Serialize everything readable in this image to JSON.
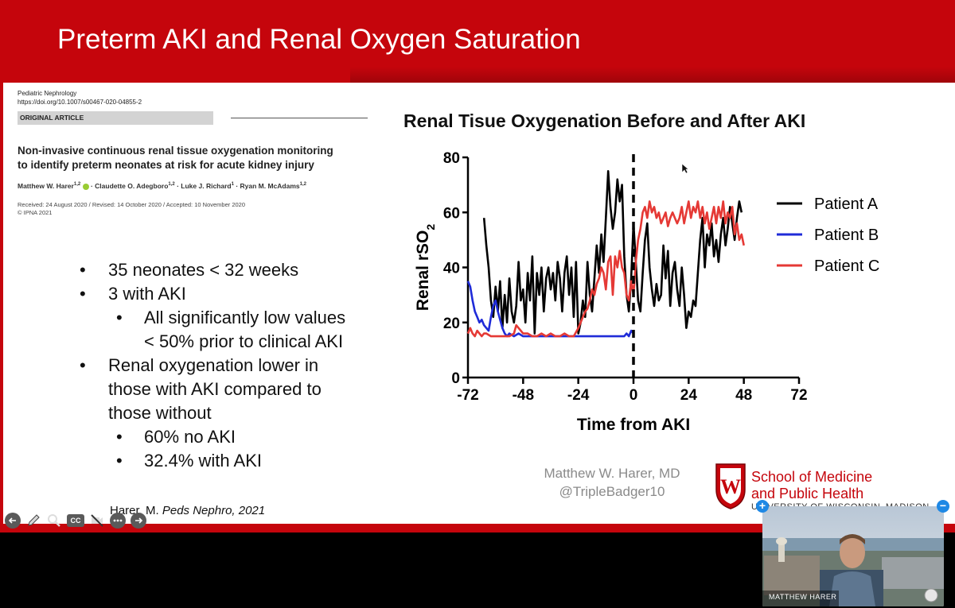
{
  "slide": {
    "title": "Preterm AKI and Renal Oxygen Saturation"
  },
  "paper": {
    "journal": "Pediatric Nephrology",
    "doi": "https://doi.org/10.1007/s00467-020-04855-2",
    "article_type": "ORIGINAL ARTICLE",
    "title_line1": "Non-invasive continuous renal tissue oxygenation monitoring",
    "title_line2": "to identify preterm neonates at risk for acute kidney injury",
    "author1": "Matthew W. Harer",
    "author1_sup": "1,2",
    "author2": "· Claudette O. Adegboro",
    "author2_sup": "1,2",
    "author3": "· Luke J. Richard",
    "author3_sup": "1",
    "author4": "· Ryan M. McAdams",
    "author4_sup": "1,2",
    "dates": "Received: 24 August 2020 / Revised: 14 October 2020 / Accepted: 10 November 2020",
    "copyright": "© IPNA 2021"
  },
  "bullets": {
    "b1": "35 neonates < 32 weeks",
    "b2": "3 with AKI",
    "b2a_line1": "All significantly low values",
    "b2a_line2": "< 50% prior to clinical AKI",
    "b3_line1": "Renal oxygenation lower in",
    "b3_line2": "those with AKI compared to",
    "b3_line3": "those without",
    "b3a": "60% no AKI",
    "b3b": "32.4% with AKI",
    "bullet_char": "•"
  },
  "citation": {
    "prefix": "Harer, M. ",
    "journal": "Peds Nephro, 2021"
  },
  "credit": {
    "name": "Matthew W. Harer, MD",
    "handle": "@TripleBadger10"
  },
  "school": {
    "line1": "School of Medicine",
    "line2": "and Public Health",
    "line3": "UNIVERSITY OF WISCONSIN–MADISON",
    "color": "#c5050c"
  },
  "webcam": {
    "participant": "MATTHEW HARER",
    "expand": "+",
    "collapse": "−"
  },
  "toolbar": {
    "icons": [
      "back-icon",
      "pen-icon",
      "zoom-icon",
      "captions-icon",
      "video-off-icon",
      "more-icon",
      "forward-icon"
    ],
    "cc_label": "CC"
  },
  "chart_data": {
    "type": "line",
    "title": "Renal Tisue Oxygenation Before and After AKI",
    "xlabel": "Time from AKI",
    "ylabel": "Renal rSO2",
    "xlim": [
      -72,
      72
    ],
    "ylim": [
      0,
      80
    ],
    "xticks": [
      "-72",
      "-48",
      "-24",
      "0",
      "24",
      "48",
      "72"
    ],
    "yticks": [
      "0",
      "20",
      "40",
      "60",
      "80"
    ],
    "vline_x": 0,
    "legend_position": "right",
    "series": [
      {
        "name": "Patient A",
        "color": "#000000",
        "x": [
          -65,
          -64,
          -63,
          -62,
          -61,
          -60,
          -59,
          -58,
          -57,
          -56,
          -55,
          -54,
          -53,
          -52,
          -51,
          -50,
          -49,
          -48,
          -47,
          -46,
          -45,
          -44,
          -43,
          -42,
          -41,
          -40,
          -39,
          -38,
          -37,
          -36,
          -35,
          -34,
          -33,
          -32,
          -31,
          -30,
          -29,
          -28,
          -27,
          -26,
          -25,
          -24,
          -23,
          -22,
          -21,
          -20,
          -19,
          -18,
          -17,
          -16,
          -15,
          -14,
          -13,
          -12,
          -11,
          -10,
          -9,
          -8,
          -7,
          -6,
          -5,
          -4,
          -3,
          -2,
          -1,
          0,
          1,
          2,
          3,
          4,
          5,
          6,
          7,
          8,
          9,
          10,
          11,
          12,
          13,
          14,
          15,
          16,
          17,
          18,
          19,
          20,
          21,
          22,
          23,
          24,
          25,
          26,
          27,
          28,
          29,
          30,
          31,
          32,
          33,
          34,
          35,
          36,
          37,
          38,
          39,
          40,
          41,
          42,
          43,
          44,
          45,
          46,
          47
        ],
        "y": [
          58,
          48,
          40,
          28,
          22,
          33,
          24,
          35,
          18,
          30,
          20,
          36,
          24,
          20,
          26,
          42,
          28,
          32,
          20,
          38,
          28,
          44,
          16,
          38,
          30,
          40,
          24,
          36,
          40,
          32,
          38,
          28,
          42,
          36,
          24,
          38,
          44,
          30,
          40,
          22,
          42,
          16,
          20,
          28,
          22,
          42,
          30,
          24,
          36,
          48,
          38,
          52,
          42,
          58,
          75,
          62,
          54,
          60,
          72,
          64,
          70,
          44,
          30,
          24,
          36,
          56,
          42,
          28,
          24,
          38,
          50,
          56,
          40,
          32,
          26,
          34,
          28,
          30,
          48,
          36,
          46,
          26,
          38,
          42,
          32,
          26,
          40,
          30,
          18,
          24,
          22,
          28,
          26,
          38,
          50,
          58,
          40,
          52,
          48,
          56,
          44,
          50,
          42,
          52,
          58,
          48,
          54,
          62,
          56,
          50,
          58,
          64,
          60
        ],
        "_comment": "approximate read from noisy trace"
      },
      {
        "name": "Patient B",
        "color": "#1f2bd8",
        "x": [
          -72,
          -71,
          -70,
          -69,
          -68,
          -67,
          -66,
          -65,
          -64,
          -63,
          -62,
          -61,
          -60,
          -59,
          -58,
          -57,
          -56,
          -55,
          -54,
          -52,
          -50,
          -48,
          -46,
          -44,
          -40,
          -36,
          -32,
          -28,
          -24,
          -20,
          -16,
          -12,
          -8,
          -6,
          -4,
          -3,
          -2,
          -1,
          0
        ],
        "y": [
          35,
          33,
          28,
          24,
          22,
          20,
          21,
          19,
          18,
          17,
          22,
          26,
          28,
          24,
          21,
          18,
          16,
          15,
          16,
          15,
          16,
          15,
          15,
          15,
          15,
          15,
          15,
          15,
          15,
          15,
          15,
          15,
          15,
          15,
          15,
          16,
          15,
          17,
          16
        ]
      },
      {
        "name": "Patient C",
        "color": "#e53935",
        "x": [
          -72,
          -71,
          -70,
          -69,
          -68,
          -67,
          -66,
          -65,
          -64,
          -62,
          -60,
          -58,
          -56,
          -54,
          -52,
          -51,
          -50,
          -49,
          -48,
          -46,
          -44,
          -42,
          -40,
          -38,
          -36,
          -34,
          -32,
          -30,
          -28,
          -26,
          -24,
          -23,
          -22,
          -21,
          -20,
          -19,
          -18,
          -17,
          -16,
          -15,
          -14,
          -13,
          -12,
          -11,
          -10,
          -9,
          -8,
          -7,
          -6,
          -5,
          -4,
          -3,
          -2,
          -1,
          0,
          1,
          2,
          3,
          4,
          5,
          6,
          7,
          8,
          9,
          10,
          11,
          12,
          13,
          14,
          15,
          16,
          17,
          18,
          19,
          20,
          21,
          22,
          23,
          24,
          25,
          26,
          27,
          28,
          29,
          30,
          31,
          32,
          33,
          34,
          35,
          36,
          37,
          38,
          39,
          40,
          41,
          42,
          43,
          44,
          45,
          46,
          47,
          48
        ],
        "y": [
          16,
          18,
          16,
          15,
          17,
          16,
          15,
          16,
          16,
          15,
          15,
          15,
          15,
          15,
          16,
          19,
          18,
          17,
          16,
          16,
          15,
          15,
          16,
          15,
          16,
          15,
          15,
          16,
          15,
          15,
          18,
          20,
          22,
          24,
          25,
          28,
          32,
          30,
          34,
          36,
          40,
          38,
          32,
          42,
          44,
          30,
          44,
          40,
          46,
          40,
          38,
          30,
          28,
          35,
          30,
          42,
          50,
          54,
          60,
          62,
          58,
          64,
          60,
          62,
          58,
          60,
          56,
          58,
          60,
          55,
          58,
          60,
          58,
          56,
          58,
          62,
          56,
          60,
          64,
          58,
          62,
          60,
          64,
          58,
          62,
          56,
          60,
          54,
          58,
          62,
          56,
          62,
          58,
          64,
          56,
          60,
          58,
          62,
          52,
          56,
          50,
          52,
          48
        ]
      }
    ]
  }
}
